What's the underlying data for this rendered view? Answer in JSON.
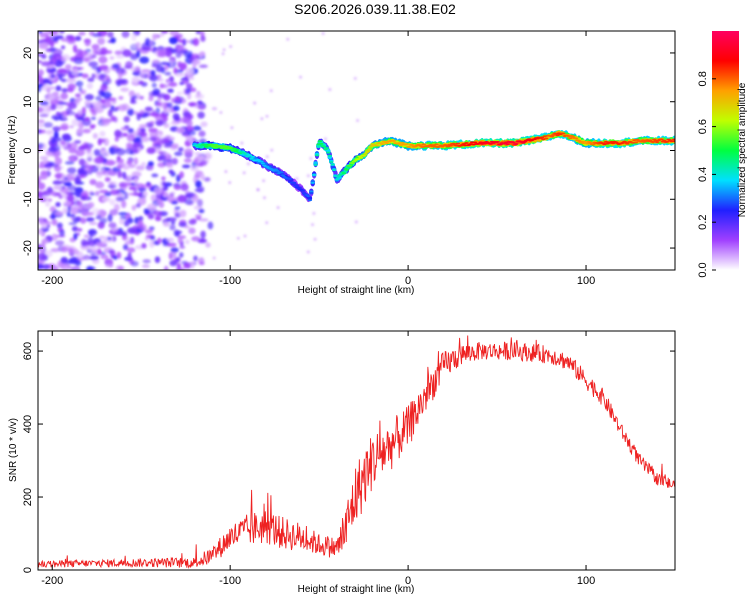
{
  "title": "S206.2026.039.11.38.E02",
  "chart_data": [
    {
      "type": "heatmap",
      "xlabel": "Height of straight line (km)",
      "ylabel": "Frequency (Hz)",
      "xlim": [
        -208,
        150
      ],
      "ylim": [
        -24.5,
        24.5
      ],
      "xticks": [
        -200,
        -100,
        0,
        100
      ],
      "yticks": [
        -20,
        -10,
        0,
        10,
        20
      ],
      "colorbar": {
        "label": "Normalized spectral amplitude",
        "range": [
          0,
          1
        ],
        "ticks": [
          0.0,
          0.2,
          0.4,
          0.6,
          0.8
        ],
        "colors": [
          "#ffffff",
          "#a040ff",
          "#2020ff",
          "#00e0ff",
          "#00ff40",
          "#c0ff00",
          "#ffa000",
          "#ff0000",
          "#ff0060"
        ]
      },
      "ridge": {
        "x": [
          -120,
          -110,
          -100,
          -90,
          -80,
          -70,
          -60,
          -55,
          -50,
          -45,
          -40,
          -35,
          -30,
          -25,
          -20,
          -10,
          0,
          10,
          20,
          40,
          60,
          75,
          80,
          85,
          90,
          100,
          110,
          120,
          130,
          150
        ],
        "y": [
          1,
          1,
          0.5,
          -1,
          -3,
          -5,
          -8,
          -10,
          2,
          0,
          -6,
          -4,
          -2,
          -1,
          1,
          2,
          1,
          1,
          1,
          1.5,
          1.5,
          2.5,
          3,
          3.5,
          3,
          1.5,
          1.5,
          1.5,
          2,
          2
        ],
        "amplitude": [
          0.4,
          0.55,
          0.55,
          0.4,
          0.35,
          0.3,
          0.25,
          0.3,
          0.5,
          0.45,
          0.4,
          0.5,
          0.6,
          0.65,
          0.7,
          0.75,
          0.75,
          0.8,
          0.8,
          0.9,
          0.95,
          0.85,
          0.8,
          0.85,
          0.8,
          0.75,
          0.85,
          0.85,
          0.8,
          0.85
        ]
      },
      "noise_region": {
        "x_from": -208,
        "x_to": -115,
        "y_from": -24.5,
        "y_to": 24.5,
        "amplitude": 0.15
      }
    },
    {
      "type": "line",
      "xlabel": "Height of straight line (km)",
      "ylabel": "SNR (10 * v/v)",
      "xlim": [
        -208,
        150
      ],
      "ylim": [
        0,
        655
      ],
      "xticks": [
        -200,
        -100,
        0,
        100
      ],
      "yticks": [
        0,
        200,
        400,
        600
      ],
      "color": "#ee2222",
      "x": [
        -208,
        -180,
        -150,
        -120,
        -110,
        -100,
        -90,
        -80,
        -70,
        -60,
        -50,
        -40,
        -35,
        -30,
        -20,
        -10,
        0,
        10,
        20,
        30,
        40,
        60,
        80,
        90,
        100,
        110,
        120,
        130,
        140,
        150
      ],
      "y": [
        15,
        18,
        20,
        20,
        40,
        90,
        110,
        120,
        100,
        90,
        70,
        60,
        110,
        200,
        300,
        340,
        390,
        480,
        560,
        590,
        600,
        600,
        590,
        570,
        520,
        470,
        380,
        300,
        250,
        230
      ],
      "jitter": [
        10,
        10,
        12,
        15,
        25,
        35,
        45,
        50,
        45,
        40,
        30,
        30,
        70,
        90,
        80,
        70,
        60,
        50,
        40,
        30,
        25,
        25,
        25,
        25,
        25,
        25,
        20,
        20,
        18,
        18
      ]
    }
  ]
}
